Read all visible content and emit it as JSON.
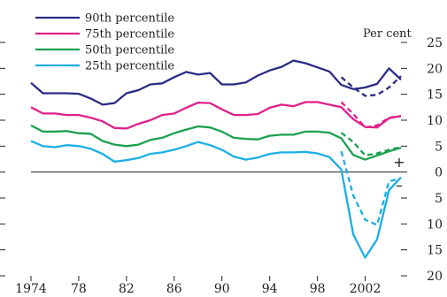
{
  "chart_data": {
    "type": "line",
    "unit_label": "Per cent",
    "sign_above": "+",
    "sign_below": "–",
    "xlim": [
      1974,
      2005
    ],
    "ylim": [
      -20,
      25
    ],
    "grid": false,
    "legend_position": "top-left",
    "x_ticks": [
      1974,
      1978,
      1982,
      1986,
      1990,
      1994,
      1998,
      2002
    ],
    "x_tick_labels": [
      "1974",
      "78",
      "82",
      "86",
      "90",
      "94",
      "98",
      "2002"
    ],
    "y_ticks": [
      25,
      20,
      15,
      10,
      5,
      0,
      -5,
      -10,
      -15,
      -20
    ],
    "y_tick_labels": [
      "25",
      "20",
      "15",
      "10",
      "5",
      "0",
      "5",
      "10",
      "15",
      "20"
    ],
    "series": [
      {
        "name": "90th percentile",
        "color": "#2b2b85",
        "x": [
          1974,
          1975,
          1976,
          1977,
          1978,
          1979,
          1980,
          1981,
          1982,
          1983,
          1984,
          1985,
          1986,
          1987,
          1988,
          1989,
          1990,
          1991,
          1992,
          1993,
          1994,
          1995,
          1996,
          1997,
          1998,
          1999,
          2000,
          2001,
          2002,
          2003,
          2004,
          2005
        ],
        "values": [
          17.2,
          15.2,
          15.2,
          15.2,
          15.1,
          14.2,
          13.0,
          13.3,
          15.2,
          15.8,
          16.9,
          17.1,
          18.3,
          19.3,
          18.8,
          19.1,
          16.9,
          16.9,
          17.3,
          18.6,
          19.6,
          20.3,
          21.5,
          21.0,
          20.2,
          19.4,
          16.8,
          16.0,
          16.3,
          17.0,
          20.0,
          17.8
        ],
        "estimate": {
          "x": [
            2000,
            2001,
            2002,
            2003,
            2004,
            2005
          ],
          "values": [
            18.3,
            16.3,
            14.7,
            14.9,
            16.3,
            18.5
          ]
        }
      },
      {
        "name": "75th percentile",
        "color": "#e0208a",
        "x": [
          1974,
          1975,
          1976,
          1977,
          1978,
          1979,
          1980,
          1981,
          1982,
          1983,
          1984,
          1985,
          1986,
          1987,
          1988,
          1989,
          1990,
          1991,
          1992,
          1993,
          1994,
          1995,
          1996,
          1997,
          1998,
          1999,
          2000,
          2001,
          2002,
          2003,
          2004,
          2005
        ],
        "values": [
          12.5,
          11.3,
          11.3,
          11.0,
          11.0,
          10.5,
          9.8,
          8.5,
          8.4,
          9.3,
          10.0,
          11.0,
          11.3,
          12.4,
          13.4,
          13.3,
          12.1,
          11.0,
          11.0,
          11.2,
          12.4,
          13.0,
          12.7,
          13.5,
          13.5,
          13.0,
          12.5,
          10.2,
          8.7,
          8.6,
          10.4,
          10.8
        ],
        "estimate": {
          "x": [
            2000,
            2001,
            2002,
            2003,
            2004,
            2005
          ],
          "values": [
            13.5,
            11.2,
            8.6,
            9.0,
            10.5,
            10.8
          ]
        }
      },
      {
        "name": "50th percentile",
        "color": "#1aa050",
        "x": [
          1974,
          1975,
          1976,
          1977,
          1978,
          1979,
          1980,
          1981,
          1982,
          1983,
          1984,
          1985,
          1986,
          1987,
          1988,
          1989,
          1990,
          1991,
          1992,
          1993,
          1994,
          1995,
          1996,
          1997,
          1998,
          1999,
          2000,
          2001,
          2002,
          2003,
          2004,
          2005
        ],
        "values": [
          9.0,
          7.8,
          7.8,
          7.9,
          7.5,
          7.4,
          6.0,
          5.3,
          5.0,
          5.3,
          6.2,
          6.6,
          7.5,
          8.2,
          8.8,
          8.6,
          7.8,
          6.6,
          6.4,
          6.3,
          7.0,
          7.2,
          7.2,
          7.8,
          7.8,
          7.6,
          6.5,
          3.3,
          2.4,
          3.2,
          4.0,
          4.7
        ],
        "estimate": {
          "x": [
            2000,
            2001,
            2002,
            2003,
            2004,
            2005
          ],
          "values": [
            7.6,
            5.8,
            3.2,
            3.6,
            4.3,
            4.8
          ]
        }
      },
      {
        "name": "25th percentile",
        "color": "#1aaee6",
        "x": [
          1974,
          1975,
          1976,
          1977,
          1978,
          1979,
          1980,
          1981,
          1982,
          1983,
          1984,
          1985,
          1986,
          1987,
          1988,
          1989,
          1990,
          1991,
          1992,
          1993,
          1994,
          1995,
          1996,
          1997,
          1998,
          1999,
          2000,
          2001,
          2002,
          2003,
          2004,
          2005
        ],
        "values": [
          6.0,
          5.0,
          4.8,
          5.2,
          5.0,
          4.5,
          3.5,
          2.0,
          2.3,
          2.7,
          3.5,
          3.8,
          4.3,
          5.0,
          5.8,
          5.2,
          4.3,
          3.0,
          2.4,
          2.8,
          3.5,
          3.8,
          3.8,
          3.9,
          3.6,
          2.9,
          0.5,
          -12.0,
          -16.5,
          -13.0,
          -3.5,
          -1.0
        ],
        "estimate": {
          "x": [
            2000,
            2001,
            2002,
            2003,
            2004,
            2005
          ],
          "values": [
            4.0,
            -4.5,
            -9.2,
            -10.2,
            -1.8,
            -1.2
          ]
        }
      }
    ]
  }
}
